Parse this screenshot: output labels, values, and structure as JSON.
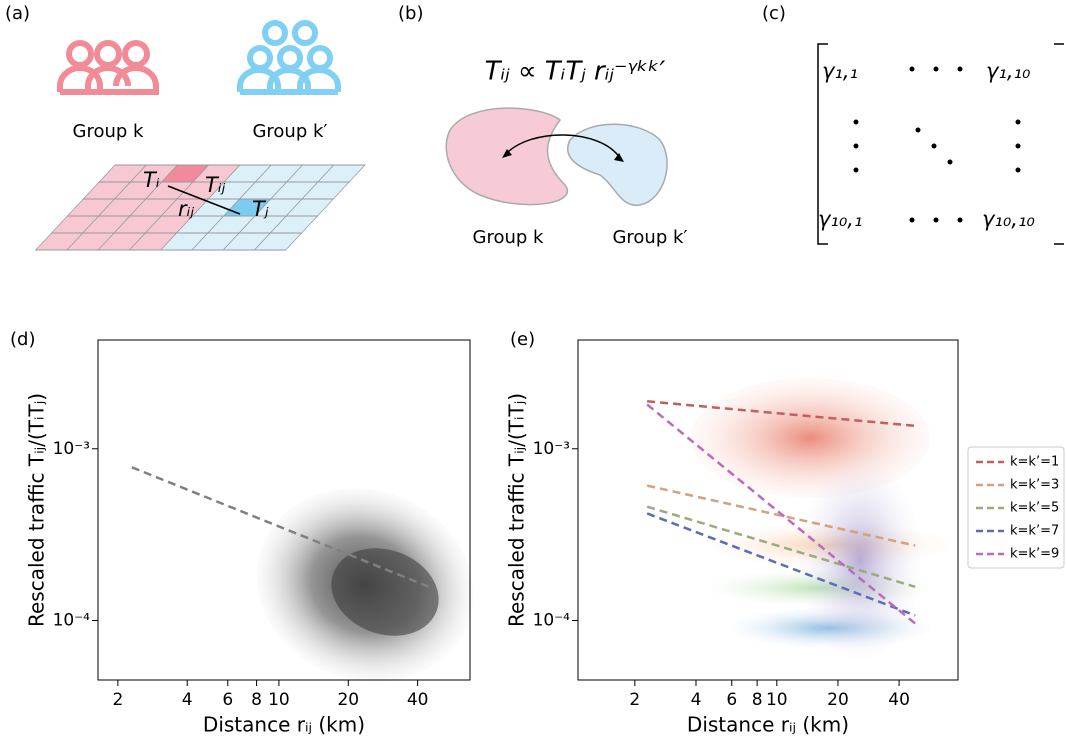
{
  "panel_labels": [
    "(a)",
    "(b)",
    "(c)",
    "(d)",
    "(e)"
  ],
  "a": {
    "group_k": "Group k",
    "group_k2": "Group k′",
    "t_i": "Tᵢ",
    "t_ij": "Tᵢⱼ",
    "r_ij": "rᵢⱼ",
    "t_j": "Tⱼ"
  },
  "b": {
    "formula": "Tᵢⱼ ∝ TᵢTⱼ rᵢⱼ⁻ᵞᵏᵏ′",
    "group_k": "Group k",
    "group_k2": "Group k′"
  },
  "c": {
    "entries": [
      "γ₁,₁",
      "γ₁,₁₀",
      "γ₁₀,₁",
      "γ₁₀,₁₀"
    ]
  },
  "chart_data": [
    {
      "type": "line",
      "xscale": "log",
      "yscale": "log",
      "xlabel": "Distance rᵢⱼ (km)",
      "ylabel": "Rescaled traffic Tᵢⱼ/(TᵢTⱼ)",
      "xlim": [
        1.64,
        67.5
      ],
      "ylim": [
        4.5e-05,
        0.0043
      ],
      "xticks": [
        2,
        4,
        6,
        8,
        10,
        20,
        40
      ],
      "yticks": [
        {
          "value": 0.001,
          "label": "10⁻³"
        },
        {
          "value": 0.0001,
          "label": "10⁻⁴"
        }
      ],
      "x": [
        2.3,
        47
      ],
      "values": [
        0.00078,
        0.000153
      ],
      "color": "#808080"
    },
    {
      "type": "line",
      "xscale": "log",
      "yscale": "log",
      "xlabel": "Distance rᵢⱼ (km)",
      "ylabel": "Rescaled traffic Tᵢⱼ/(TᵢTⱼ)",
      "xlim": [
        1.05,
        78
      ],
      "ylim": [
        4.5e-05,
        0.0043
      ],
      "xticks": [
        2,
        4,
        6,
        8,
        10,
        20,
        40
      ],
      "yticks": [
        {
          "value": 0.001,
          "label": "10⁻³"
        },
        {
          "value": 0.0001,
          "label": "10⁻⁴"
        }
      ],
      "legend": "right",
      "series": [
        {
          "name": "k=k’=1",
          "color": "#c0605f",
          "x": [
            2.3,
            48
          ],
          "values": [
            0.00189,
            0.00136
          ]
        },
        {
          "name": "k=k’=3",
          "color": "#d4a07f",
          "x": [
            2.3,
            48
          ],
          "values": [
            0.00061,
            0.000273
          ]
        },
        {
          "name": "k=k’=5",
          "color": "#9aab7e",
          "x": [
            2.3,
            48
          ],
          "values": [
            0.00046,
            0.000157
          ]
        },
        {
          "name": "k=k’=7",
          "color": "#5c6db3",
          "x": [
            2.3,
            48
          ],
          "values": [
            0.00042,
            0.000107
          ]
        },
        {
          "name": "k=k’=9",
          "color": "#bb6bbb",
          "x": [
            2.3,
            48
          ],
          "values": [
            0.00181,
            9.6e-05
          ]
        }
      ]
    }
  ]
}
